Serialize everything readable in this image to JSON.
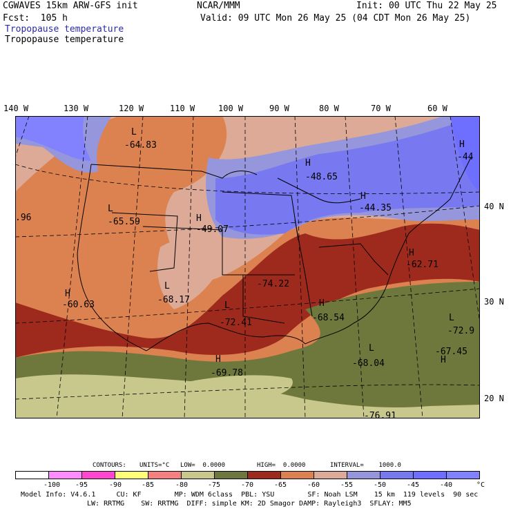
{
  "header": {
    "model": "CGWAVES 15km ARW-GFS init",
    "fcst": "Fcst:  105 h",
    "org": "NCAR/MMM",
    "init": "Init: 00 UTC Thu 22 May 25",
    "valid": "Valid: 09 UTC Mon 26 May 25 (04 CDT Mon 26 May 25)",
    "field_colored": "Tropopause temperature",
    "field_contour": "Tropopause temperature"
  },
  "longitudes": [
    "140 W",
    "130 W",
    "120 W",
    "110 W",
    "100 W",
    "90 W",
    "80 W",
    "70 W",
    "60 W"
  ],
  "latitudes": [
    "40 N",
    "30 N",
    "20 N"
  ],
  "extrema": [
    {
      "type": "L",
      "value": "-64.83"
    },
    {
      "type": "H",
      "value": "-48.65"
    },
    {
      "type": "H",
      "value": "-44"
    },
    {
      "type": "H",
      "value": "-44.35"
    },
    {
      "type": "L",
      "value": "-65.59"
    },
    {
      "type": "H",
      "value": "-49.07"
    },
    {
      "type": "H",
      "value": "-62.71"
    },
    {
      "type": "",
      "value": "-74.22"
    },
    {
      "type": "L",
      "value": "-68.17"
    },
    {
      "type": "H",
      "value": "-60.63"
    },
    {
      "type": "L",
      "value": "-72.41"
    },
    {
      "type": "H",
      "value": "-68.54"
    },
    {
      "type": "L",
      "value": "-72.9"
    },
    {
      "type": "H",
      "value": "-69.78"
    },
    {
      "type": "L",
      "value": "-68.04"
    },
    {
      "type": "H",
      "value": "-67.45"
    },
    {
      "type": "",
      "value": "-76.91"
    },
    {
      "type": "",
      "value": ".96"
    }
  ],
  "contour_info": {
    "contours": "CONTOURS:",
    "units": "UNITS=°C",
    "low": "LOW=  0.0000",
    "high": "HIGH=  0.0000",
    "interval": "INTERVAL=    1000.0"
  },
  "colorbar": {
    "ticks": [
      "-100",
      "-95",
      "-90",
      "-85",
      "-80",
      "-75",
      "-70",
      "-65",
      "-60",
      "-55",
      "-50",
      "-45",
      "-40"
    ],
    "unit": "°C",
    "colors": [
      "#ffffff",
      "#ff8cff",
      "#ff46d2",
      "#ffff78",
      "#f58080",
      "#c8c88c",
      "#6e783c",
      "#9e2a1e",
      "#dc8250",
      "#dcaa96",
      "#9696dc",
      "#7878f0",
      "#6e6eff",
      "#8282ff"
    ]
  },
  "model_info": {
    "line1": "Model Info: V4.6.1     CU: KF        MP: WDM 6class  PBL: YSU        SF: Noah LSM    15 km  119 levels  90 sec",
    "line2": "LW: RRTMG    SW: RRTMG  DIFF: simple KM: 2D Smagor DAMP: Rayleigh3  SFLAY: MM5"
  }
}
